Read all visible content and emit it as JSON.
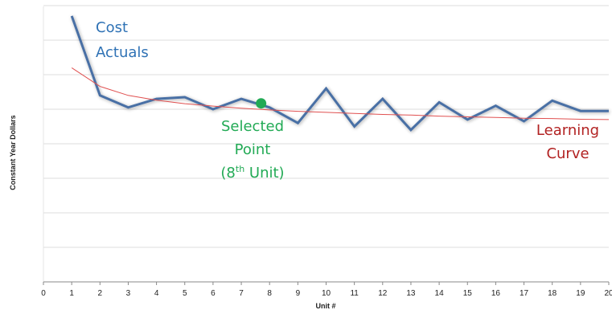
{
  "chart_data": {
    "type": "line",
    "xlabel": "Unit #",
    "ylabel": "Constant Year Dollars",
    "xlim": [
      0,
      20
    ],
    "x_ticks": [
      "0",
      "1",
      "2",
      "3",
      "4",
      "5",
      "6",
      "7",
      "8",
      "9",
      "10",
      "11",
      "12",
      "13",
      "14",
      "15",
      "16",
      "17",
      "18",
      "19",
      "20"
    ],
    "y_gridlines": 8,
    "grid": "horizontal",
    "series": [
      {
        "name": "Cost Actuals",
        "color": "#4a6fa5",
        "style": "thick-line",
        "x": [
          1,
          2,
          3,
          4,
          5,
          6,
          7,
          8,
          9,
          10,
          11,
          12,
          13,
          14,
          15,
          16,
          17,
          18,
          19,
          20
        ],
        "y": [
          7.7,
          5.4,
          5.05,
          5.3,
          5.35,
          5.0,
          5.3,
          5.05,
          4.6,
          5.6,
          4.5,
          5.3,
          4.4,
          5.2,
          4.7,
          5.1,
          4.65,
          5.25,
          4.95,
          4.95
        ]
      },
      {
        "name": "Learning Curve",
        "color": "#e05050",
        "style": "thin-line",
        "x": [
          1,
          2,
          3,
          4,
          5,
          6,
          7,
          8,
          9,
          10,
          11,
          12,
          13,
          14,
          15,
          16,
          17,
          18,
          19,
          20
        ],
        "y": [
          6.2,
          5.66,
          5.4,
          5.26,
          5.16,
          5.09,
          5.03,
          4.98,
          4.94,
          4.91,
          4.88,
          4.85,
          4.83,
          4.8,
          4.78,
          4.76,
          4.74,
          4.73,
          4.71,
          4.7
        ]
      }
    ],
    "highlight_point": {
      "x": 7.7,
      "y": 5.17,
      "color": "#22aa55"
    },
    "annotations": {
      "cost_line1": "Cost",
      "cost_line2": "Actuals",
      "selected_line1": "Selected",
      "selected_line2": "Point",
      "selected_line3_prefix": "(8",
      "selected_line3_sup": "th",
      "selected_line3_suffix": " Unit)",
      "learning_line1": "Learning",
      "learning_line2": "Curve",
      "cost_color": "#2f72b5",
      "selected_color": "#22aa55",
      "learning_color": "#b22222"
    }
  }
}
